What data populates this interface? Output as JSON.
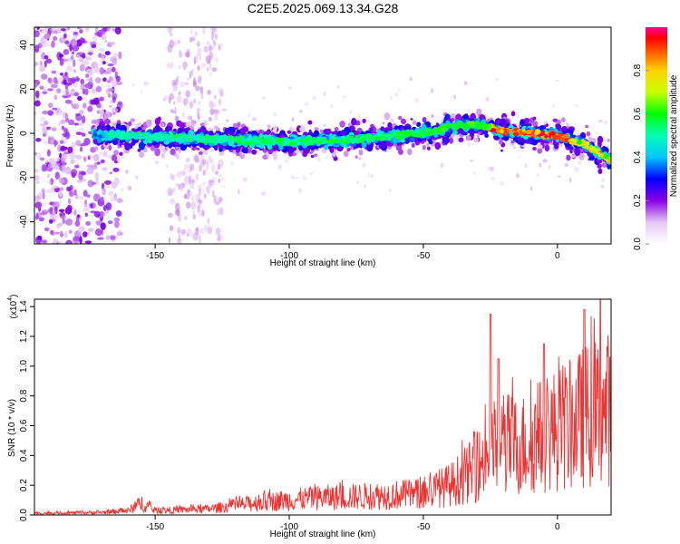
{
  "title": "C2E5.2025.069.13.34.G28",
  "chart_data": [
    {
      "type": "heatmap",
      "xlabel": "Height of straight line (km)",
      "ylabel": "Frequency (Hz)",
      "xlim": [
        -195,
        20
      ],
      "ylim": [
        -50,
        48
      ],
      "xticks": [
        -150,
        -100,
        -50,
        0
      ],
      "yticks": [
        -40,
        -20,
        0,
        20,
        40
      ],
      "colorbar": {
        "label": "Normalized spectral amplitude",
        "range": [
          0.0,
          1.0
        ],
        "ticks": [
          0.0,
          0.2,
          0.4,
          0.6,
          0.8
        ]
      },
      "ridge": {
        "x": [
          -195,
          -160,
          -140,
          -120,
          -100,
          -80,
          -60,
          -45,
          -40,
          -30,
          -20,
          -10,
          0,
          10,
          20
        ],
        "y": [
          0,
          -1,
          -2,
          -3,
          -4,
          -3,
          -1,
          1,
          3,
          4,
          1,
          0,
          -1,
          -5,
          -12
        ],
        "peak_amplitude_region_km": [
          -25,
          5
        ]
      }
    },
    {
      "type": "line",
      "xlabel": "Height of straight line (km)",
      "ylabel": "SNR (10 * v/v)",
      "yscale_label": "(x10",
      "yscale_exp": "4",
      "xlim": [
        -195,
        20
      ],
      "ylim": [
        0,
        1.45
      ],
      "xticks": [
        -150,
        -100,
        -50,
        0
      ],
      "yticks": [
        0.0,
        0.2,
        0.4,
        0.6,
        0.8,
        1.0,
        1.2,
        1.4
      ],
      "color": "#ee3333",
      "envelope": {
        "x": [
          -195,
          -170,
          -160,
          -155,
          -150,
          -130,
          -110,
          -90,
          -70,
          -50,
          -40,
          -30,
          -25,
          -20,
          -15,
          -10,
          -5,
          0,
          5,
          10,
          15,
          20
        ],
        "y": [
          0.02,
          0.03,
          0.05,
          0.14,
          0.05,
          0.07,
          0.15,
          0.2,
          0.22,
          0.25,
          0.35,
          0.55,
          0.75,
          0.85,
          0.8,
          0.85,
          0.95,
          1.0,
          1.05,
          1.15,
          1.2,
          1.25
        ]
      },
      "spikes": [
        {
          "x": -25,
          "y": 1.35
        },
        {
          "x": -22,
          "y": 1.05
        },
        {
          "x": -5,
          "y": 1.15
        },
        {
          "x": 10,
          "y": 1.38
        },
        {
          "x": 16,
          "y": 1.45
        }
      ]
    }
  ]
}
